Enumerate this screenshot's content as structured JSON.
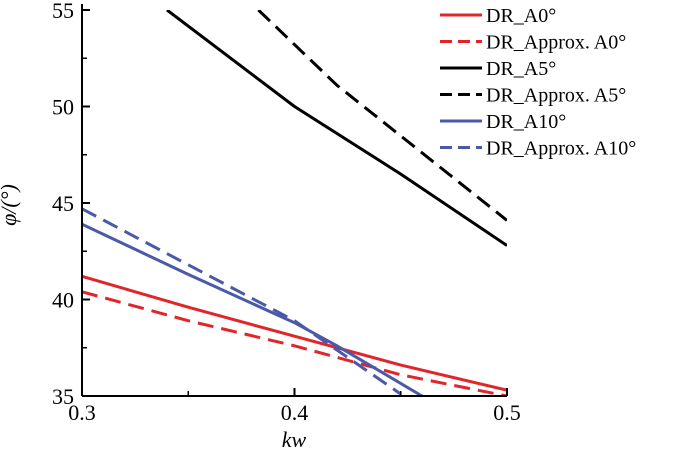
{
  "chart_data": {
    "type": "line",
    "xlabel": "kw",
    "ylabel": "φ/(°)",
    "xlim": [
      0.3,
      0.5
    ],
    "ylim": [
      35,
      55
    ],
    "xticks": [
      0.3,
      0.4,
      0.5
    ],
    "xtick_labels": [
      "0.3",
      "0.4",
      "0.5"
    ],
    "yticks": [
      35,
      40,
      45,
      50,
      55
    ],
    "ytick_labels": [
      "35",
      "40",
      "45",
      "50",
      "55"
    ],
    "grid": false,
    "legend_position": "top-right",
    "series": [
      {
        "name": "DR_A0°",
        "color": "#e0262b",
        "dash": "solid",
        "x": [
          0.3,
          0.35,
          0.4,
          0.45,
          0.5
        ],
        "y": [
          41.2,
          39.6,
          38.1,
          36.6,
          35.3
        ]
      },
      {
        "name": "DR_Approx. A0°",
        "color": "#e0262b",
        "dash": "dashed",
        "x": [
          0.3,
          0.35,
          0.4,
          0.45,
          0.5
        ],
        "y": [
          40.4,
          38.9,
          37.6,
          36.1,
          35.0
        ]
      },
      {
        "name": "DR_A5°",
        "color": "#000000",
        "dash": "solid",
        "x": [
          0.34,
          0.4,
          0.45,
          0.5
        ],
        "y": [
          55.0,
          50.0,
          46.5,
          42.8
        ]
      },
      {
        "name": "DR_Approx. A5°",
        "color": "#000000",
        "dash": "dashed",
        "x": [
          0.383,
          0.42,
          0.46,
          0.5
        ],
        "y": [
          55.0,
          51.1,
          47.6,
          44.1
        ]
      },
      {
        "name": "DR_A10°",
        "color": "#4a5aa8",
        "dash": "solid",
        "x": [
          0.3,
          0.35,
          0.4,
          0.42,
          0.46
        ],
        "y": [
          43.9,
          41.3,
          38.8,
          37.6,
          35.0
        ]
      },
      {
        "name": "DR_Approx. A10°",
        "color": "#4a5aa8",
        "dash": "dashed",
        "x": [
          0.3,
          0.35,
          0.4,
          0.45
        ],
        "y": [
          44.7,
          41.8,
          38.9,
          35.1
        ]
      }
    ]
  }
}
